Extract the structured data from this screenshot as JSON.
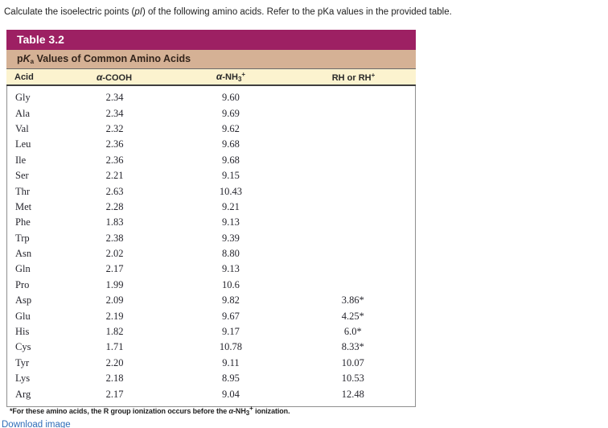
{
  "prompt": {
    "pre": "Calculate the isoelectric points (",
    "italic": "pI",
    "post": ") of the following amino acids. Refer to the pKa values in the provided table."
  },
  "table": {
    "title": "Table 3.2",
    "subtitle": {
      "p": "p",
      "k": "K",
      "sub": "a",
      "rest": " Values of Common Amino Acids"
    },
    "columns": {
      "acid": "Acid",
      "cooh_alpha": "α",
      "cooh_rest": "-COOH",
      "nh3_alpha": "α",
      "nh3_rest": "-NH",
      "nh3_sub": "3",
      "nh3_sup": "+",
      "rh_text": "RH or RH",
      "rh_sup": "+"
    },
    "rows": [
      {
        "acid": "Gly",
        "cooh": "2.34",
        "nh3": "9.60",
        "rh": ""
      },
      {
        "acid": "Ala",
        "cooh": "2.34",
        "nh3": "9.69",
        "rh": ""
      },
      {
        "acid": "Val",
        "cooh": "2.32",
        "nh3": "9.62",
        "rh": ""
      },
      {
        "acid": "Leu",
        "cooh": "2.36",
        "nh3": "9.68",
        "rh": ""
      },
      {
        "acid": "Ile",
        "cooh": "2.36",
        "nh3": "9.68",
        "rh": ""
      },
      {
        "acid": "Ser",
        "cooh": "2.21",
        "nh3": "9.15",
        "rh": ""
      },
      {
        "acid": "Thr",
        "cooh": "2.63",
        "nh3": "10.43",
        "rh": ""
      },
      {
        "acid": "Met",
        "cooh": "2.28",
        "nh3": "9.21",
        "rh": ""
      },
      {
        "acid": "Phe",
        "cooh": "1.83",
        "nh3": "9.13",
        "rh": ""
      },
      {
        "acid": "Trp",
        "cooh": "2.38",
        "nh3": "9.39",
        "rh": ""
      },
      {
        "acid": "Asn",
        "cooh": "2.02",
        "nh3": "8.80",
        "rh": ""
      },
      {
        "acid": "Gln",
        "cooh": "2.17",
        "nh3": "9.13",
        "rh": ""
      },
      {
        "acid": "Pro",
        "cooh": "1.99",
        "nh3": "10.6",
        "rh": ""
      },
      {
        "acid": "Asp",
        "cooh": "2.09",
        "nh3": "9.82",
        "rh": "3.86*"
      },
      {
        "acid": "Glu",
        "cooh": "2.19",
        "nh3": "9.67",
        "rh": "4.25*"
      },
      {
        "acid": "His",
        "cooh": "1.82",
        "nh3": "9.17",
        "rh": "6.0*"
      },
      {
        "acid": "Cys",
        "cooh": "1.71",
        "nh3": "10.78",
        "rh": "8.33*"
      },
      {
        "acid": "Tyr",
        "cooh": "2.20",
        "nh3": "9.11",
        "rh": "10.07"
      },
      {
        "acid": "Lys",
        "cooh": "2.18",
        "nh3": "8.95",
        "rh": "10.53"
      },
      {
        "acid": "Arg",
        "cooh": "2.17",
        "nh3": "9.04",
        "rh": "12.48"
      }
    ],
    "footnote": {
      "pre": "*For these amino acids, the R group ionization occurs before the ",
      "alpha": "α",
      "mid": "-NH",
      "sub": "3",
      "sup": "+",
      "post": " ionization."
    }
  },
  "links": {
    "download": "Download image"
  },
  "colors": {
    "title_bar": "#9D2063",
    "subtitle_bar": "#D5B195",
    "header_row": "#FCF3CF",
    "link": "#2F6DB8"
  }
}
